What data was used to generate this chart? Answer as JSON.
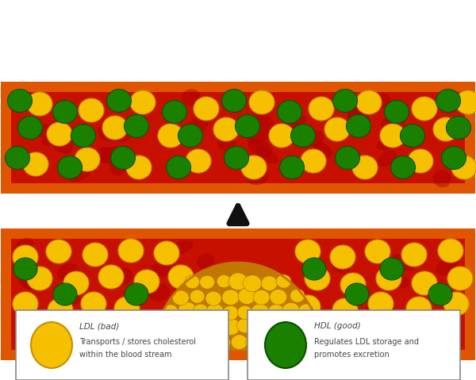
{
  "bg_color": "#ffffff",
  "vessel_border_color": "#e05500",
  "vessel_fill_color": "#c81000",
  "ldl_color": "#f5c000",
  "ldl_edge_color": "#c89000",
  "hdl_color": "#1a8000",
  "hdl_edge_color": "#0a5000",
  "plaque_color": "#f0b000",
  "plaque_edge_color": "#c07800",
  "plaque_ball_color": "#f2c000",
  "plaque_ball_edge": "#b07000",
  "rbc_color": "#aa0000",
  "rbc_edge_color": "#880000",
  "arrow_color": "#111111",
  "legend_ldl_title": "LDL (bad)",
  "legend_ldl_text": "Transports / stores cholesterol\nwithin the blood stream",
  "legend_hdl_title": "HDL (good)",
  "legend_hdl_text": "Regulates LDL storage and\npromotes excretion"
}
